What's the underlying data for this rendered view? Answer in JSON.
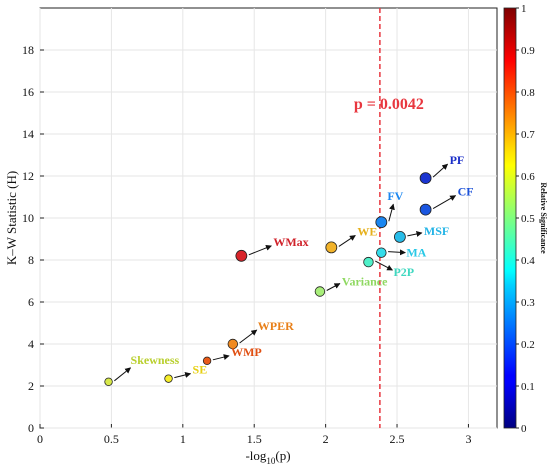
{
  "chart_data": {
    "type": "scatter",
    "title": "",
    "xlabel_main": "-log",
    "xlabel_sub": "10",
    "xlabel_tail": "(p)",
    "ylabel": "K–W Statistic (H)",
    "xlim": [
      0,
      3.2
    ],
    "ylim": [
      0,
      20
    ],
    "xticks": [
      "0",
      "0.5",
      "1",
      "1.5",
      "2",
      "2.5",
      "3"
    ],
    "yticks": [
      "0",
      "2",
      "4",
      "6",
      "8",
      "10",
      "12",
      "14",
      "16",
      "18"
    ],
    "grid": true,
    "threshold": {
      "x": 2.38,
      "label": "p = 0.0042",
      "color": "#e8373f"
    },
    "colorbar": {
      "label": "Relative Significance",
      "ticks": [
        "0",
        "0.1",
        "0.2",
        "0.3",
        "0.4",
        "0.5",
        "0.6",
        "0.7",
        "0.8",
        "0.9",
        "1"
      ],
      "range": [
        0,
        1
      ]
    },
    "points": [
      {
        "label": "Skewness",
        "x": 0.48,
        "y": 2.2,
        "color": "#d7e84a",
        "label_color": "#b9cf2e"
      },
      {
        "label": "SE",
        "x": 0.9,
        "y": 2.35,
        "color": "#f6ee2a",
        "label_color": "#e6cf12"
      },
      {
        "label": "WMP",
        "x": 1.17,
        "y": 3.2,
        "color": "#ea5a17",
        "label_color": "#e04f12"
      },
      {
        "label": "WPER",
        "x": 1.35,
        "y": 4.0,
        "color": "#f08a22",
        "label_color": "#e8801a"
      },
      {
        "label": "WMax",
        "x": 1.41,
        "y": 8.2,
        "color": "#d8242a",
        "label_color": "#d0222a"
      },
      {
        "label": "Variance",
        "x": 1.96,
        "y": 6.5,
        "color": "#a8ee7a",
        "label_color": "#8ed860"
      },
      {
        "label": "WE",
        "x": 2.04,
        "y": 8.6,
        "color": "#f2b32a",
        "label_color": "#e6b01a"
      },
      {
        "label": "P2P",
        "x": 2.3,
        "y": 7.9,
        "color": "#4ff0c8",
        "label_color": "#3fd8c0"
      },
      {
        "label": "MA",
        "x": 2.39,
        "y": 8.35,
        "color": "#35dcea",
        "label_color": "#28c8e6"
      },
      {
        "label": "FV",
        "x": 2.39,
        "y": 9.8,
        "color": "#1a86f0",
        "label_color": "#1a86f0"
      },
      {
        "label": "MSF",
        "x": 2.52,
        "y": 9.1,
        "color": "#28bce8",
        "label_color": "#24b4e6"
      },
      {
        "label": "CF",
        "x": 2.7,
        "y": 10.4,
        "color": "#1a56e0",
        "label_color": "#1a50d8"
      },
      {
        "label": "PF",
        "x": 2.7,
        "y": 11.9,
        "color": "#1a34d0",
        "label_color": "#1a2ec8"
      }
    ]
  }
}
